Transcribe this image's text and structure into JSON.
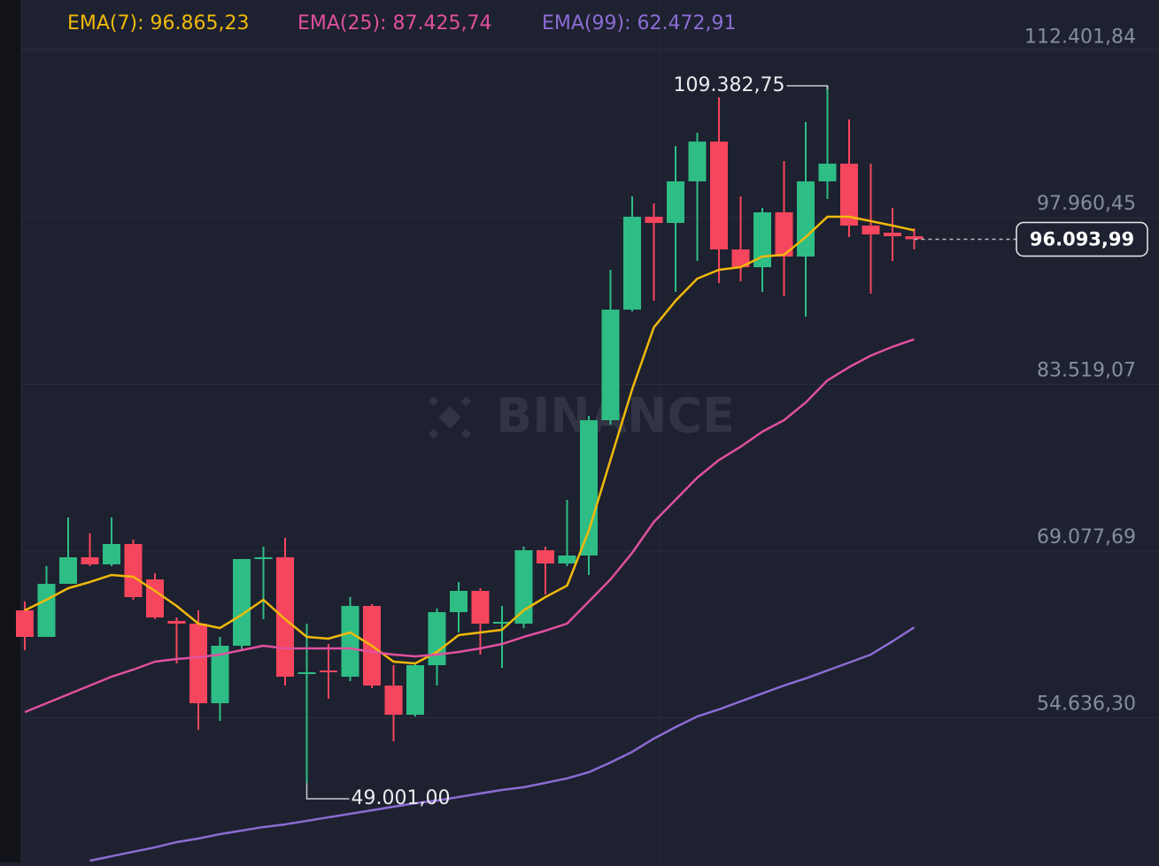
{
  "chart_data": {
    "type": "candlestick",
    "watermark": "BINANCE",
    "ylim": [
      42100,
      116820
    ],
    "yticks": [
      {
        "value": 112401.84,
        "label": "112.401,84"
      },
      {
        "value": 97960.45,
        "label": "97.960,45"
      },
      {
        "value": 83519.07,
        "label": "83.519,07"
      },
      {
        "value": 69077.69,
        "label": "69.077,69"
      },
      {
        "value": 54636.3,
        "label": "54.636,30"
      }
    ],
    "grid": true,
    "up_color": "#2ebd85",
    "down_color": "#f6465d",
    "categories": [
      null,
      null,
      null,
      null,
      null,
      null,
      null,
      null,
      null,
      null,
      null,
      null,
      null,
      null,
      null,
      null,
      null,
      null,
      null,
      null,
      null,
      null,
      null,
      null,
      null,
      null,
      null,
      null,
      null,
      null,
      null,
      null,
      null,
      null,
      null,
      null,
      null,
      null,
      null,
      null,
      null,
      null
    ],
    "open": [
      63941,
      61642,
      66241,
      68539,
      67926,
      69689,
      66623,
      63022,
      62792,
      55895,
      60876,
      68386,
      68539,
      58424,
      58730,
      58194,
      64325,
      57428,
      54899,
      59190,
      63788,
      65627,
      62792,
      62792,
      69152,
      68003,
      68693,
      80417,
      89996,
      98042,
      97505,
      101107,
      104555,
      95207,
      93674,
      98425,
      94593,
      101107,
      102640,
      97276,
      96662,
      96356
    ],
    "high": [
      64708,
      67773,
      71987,
      70608,
      71987,
      70072,
      67160,
      63328,
      63941,
      61642,
      68386,
      69459,
      70225,
      62792,
      61029,
      65091,
      64478,
      59190,
      59344,
      64095,
      66394,
      65857,
      64325,
      69459,
      69459,
      73520,
      80800,
      93444,
      99806,
      99191,
      104172,
      105322,
      108387,
      99806,
      98808,
      102869,
      106241,
      109382.75,
      106471,
      102640,
      98808,
      97046
    ],
    "low": [
      60493,
      61642,
      66241,
      67773,
      67773,
      64861,
      63175,
      59344,
      53597,
      54363,
      60493,
      63175,
      57428,
      49001,
      56278,
      57811,
      57198,
      52600,
      54746,
      57428,
      62026,
      60110,
      58960,
      62409,
      65321,
      67773,
      67007,
      80034,
      89843,
      90762,
      91528,
      94210,
      92294,
      92448,
      91528,
      91145,
      89383,
      99574,
      96279,
      91375,
      94210,
      95207
    ],
    "close": [
      61642,
      66241,
      68539,
      67926,
      69689,
      65091,
      63328,
      62792,
      55895,
      60876,
      68386,
      68539,
      58194,
      58577,
      58577,
      64325,
      57428,
      54899,
      59190,
      63788,
      65627,
      62792,
      62945,
      69152,
      68003,
      68693,
      80417,
      89996,
      98042,
      97505,
      101107,
      104555,
      95207,
      93674,
      98425,
      94593,
      101107,
      102640,
      97276,
      96509,
      96356,
      96093.99
    ],
    "series": [
      {
        "name": "EMA(7): 96.865,23",
        "color": "#f0b90b",
        "values": [
          63941,
          64861,
          65857,
          66394,
          67007,
          66854,
          65627,
          64325,
          62792,
          62409,
          63558,
          64861,
          63175,
          61642,
          61489,
          62026,
          60876,
          59497,
          59344,
          60340,
          61795,
          62026,
          62256,
          63941,
          65091,
          66087,
          70838,
          76968,
          83099,
          88463,
          90762,
          92678,
          93444,
          93674,
          94593,
          94746,
          96279,
          98042,
          98042,
          97659,
          97276,
          96865.23
        ]
      },
      {
        "name": "EMA(25): 87.425,74",
        "color": "#e0509f",
        "values": [
          55129,
          55895,
          56661,
          57428,
          58194,
          58807,
          59497,
          59727,
          59880,
          60110,
          60493,
          60876,
          60646,
          60646,
          60646,
          60646,
          60340,
          60110,
          59957,
          60110,
          60340,
          60646,
          61029,
          61642,
          62179,
          62792,
          64708,
          66623,
          68922,
          71604,
          73520,
          75436,
          76968,
          78118,
          79420,
          80417,
          81950,
          83865,
          85015,
          86011,
          86777,
          87425.74
        ]
      },
      {
        "name": "EMA(99): 62.472,91",
        "color": "#8c6cd4",
        "values": [
          null,
          null,
          null,
          42256,
          42639,
          43023,
          43406,
          43866,
          44172,
          44556,
          44862,
          45169,
          45399,
          45705,
          46012,
          46316,
          46623,
          46930,
          47236,
          47466,
          47772,
          48079,
          48385,
          48615,
          48999,
          49382,
          49918,
          50761,
          51681,
          52830,
          53826,
          54746,
          55359,
          56049,
          56739,
          57428,
          58041,
          58731,
          59420,
          60110,
          61259,
          62472.91
        ]
      }
    ],
    "annotations": [
      {
        "label": "109.382,75",
        "value": 109382.75
      },
      {
        "label": "49.001,00",
        "value": 49001
      }
    ],
    "last_price": {
      "label": "96.093,99",
      "value": 96093.99
    }
  }
}
